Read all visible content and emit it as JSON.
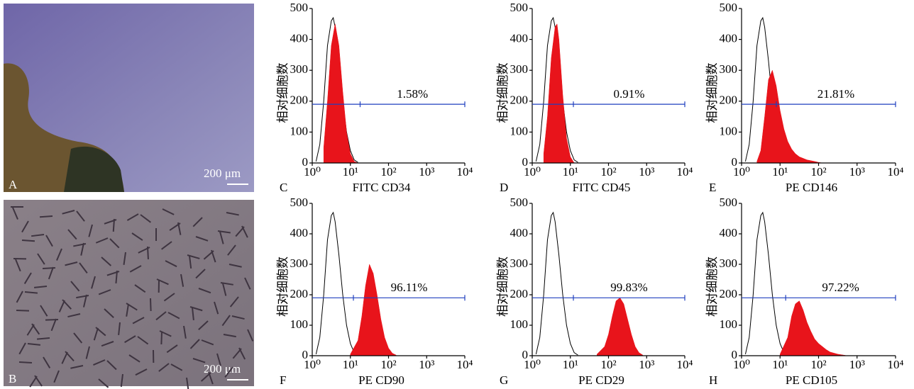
{
  "images": [
    {
      "label": "A",
      "scale": "200 μm"
    },
    {
      "label": "B",
      "scale": "200 μm"
    }
  ],
  "chart_data": [
    {
      "type": "area",
      "panel": "C",
      "xlabel": "FITC CD34",
      "ylabel": "相对细胞数",
      "xscale": "log",
      "xlim": [
        1,
        10000
      ],
      "xticks": [
        {
          "value": 1,
          "label": "10⁰"
        },
        {
          "value": 10,
          "label": "10¹"
        },
        {
          "value": 100,
          "label": "10²"
        },
        {
          "value": 1000,
          "label": "10³"
        },
        {
          "value": 10000,
          "label": "10⁴"
        }
      ],
      "ylim": [
        0,
        500
      ],
      "yticks": [
        0,
        100,
        200,
        300,
        400,
        500
      ],
      "gate": {
        "x": 18,
        "y": 190,
        "label": "1.58%",
        "color": "#1f3fbf"
      },
      "series": [
        {
          "color": "#000000",
          "filled": false,
          "x": [
            1.26,
            1.58,
            2,
            2.51,
            3.16,
            3.55,
            3.98,
            5.01,
            6.31,
            7.94,
            10,
            12.6,
            15.8
          ],
          "values": [
            5,
            60,
            200,
            380,
            460,
            470,
            440,
            330,
            200,
            100,
            40,
            10,
            2
          ]
        },
        {
          "color": "#e8141b",
          "filled": true,
          "x": [
            2,
            2.51,
            3.16,
            3.98,
            5.01,
            6.31,
            7.94,
            10,
            12.6,
            15.8
          ],
          "values": [
            50,
            200,
            380,
            450,
            380,
            230,
            100,
            30,
            5,
            0
          ]
        }
      ]
    },
    {
      "type": "area",
      "panel": "D",
      "xlabel": "FITC CD45",
      "ylabel": "相对细胞数",
      "xscale": "log",
      "xlim": [
        1,
        10000
      ],
      "xticks": [
        {
          "value": 1,
          "label": "10⁰"
        },
        {
          "value": 10,
          "label": "10¹"
        },
        {
          "value": 100,
          "label": "10²"
        },
        {
          "value": 1000,
          "label": "10³"
        },
        {
          "value": 10000,
          "label": "10⁴"
        }
      ],
      "ylim": [
        0,
        500
      ],
      "yticks": [
        0,
        100,
        200,
        300,
        400,
        500
      ],
      "gate": {
        "x": 12,
        "y": 190,
        "label": "0.91%",
        "color": "#1f3fbf"
      },
      "series": [
        {
          "color": "#000000",
          "filled": false,
          "x": [
            1.26,
            1.58,
            2,
            2.51,
            3.16,
            3.55,
            3.98,
            5.01,
            6.31,
            7.94,
            10,
            12.6,
            15.8
          ],
          "values": [
            5,
            60,
            200,
            380,
            460,
            470,
            440,
            330,
            200,
            100,
            40,
            10,
            2
          ]
        },
        {
          "color": "#e8141b",
          "filled": true,
          "x": [
            2,
            2.51,
            3.16,
            3.98,
            4.47,
            5.01,
            6.31,
            7.94,
            10,
            12.6
          ],
          "values": [
            30,
            150,
            340,
            440,
            450,
            400,
            220,
            80,
            20,
            0
          ]
        }
      ]
    },
    {
      "type": "area",
      "panel": "E",
      "xlabel": "PE CD146",
      "ylabel": "相对细胞数",
      "xscale": "log",
      "xlim": [
        1,
        10000
      ],
      "xticks": [
        {
          "value": 1,
          "label": "10⁰"
        },
        {
          "value": 10,
          "label": "10¹"
        },
        {
          "value": 100,
          "label": "10²"
        },
        {
          "value": 1000,
          "label": "10³"
        },
        {
          "value": 10000,
          "label": "10⁴"
        }
      ],
      "ylim": [
        0,
        500
      ],
      "yticks": [
        0,
        100,
        200,
        300,
        400,
        500
      ],
      "gate": {
        "x": 8,
        "y": 190,
        "label": "21.81%",
        "color": "#1f3fbf"
      },
      "series": [
        {
          "color": "#000000",
          "filled": false,
          "x": [
            1.26,
            1.58,
            2,
            2.51,
            3.16,
            3.55,
            3.98,
            5.01,
            6.31,
            7.94,
            10,
            12.6,
            15.8
          ],
          "values": [
            5,
            60,
            200,
            380,
            460,
            470,
            440,
            330,
            200,
            100,
            40,
            10,
            2
          ]
        },
        {
          "color": "#e8141b",
          "filled": true,
          "x": [
            2.51,
            3.16,
            3.98,
            5.01,
            6.31,
            7.94,
            10,
            12.6,
            15.8,
            20,
            25,
            31.6,
            50,
            79,
            100,
            126
          ],
          "values": [
            5,
            40,
            150,
            270,
            300,
            250,
            170,
            110,
            70,
            45,
            30,
            20,
            10,
            5,
            2,
            0
          ]
        }
      ]
    },
    {
      "type": "area",
      "panel": "F",
      "xlabel": "PE CD90",
      "ylabel": "相对细胞数",
      "xscale": "log",
      "xlim": [
        1,
        10000
      ],
      "xticks": [
        {
          "value": 1,
          "label": "10⁰"
        },
        {
          "value": 10,
          "label": "10¹"
        },
        {
          "value": 100,
          "label": "10²"
        },
        {
          "value": 1000,
          "label": "10³"
        },
        {
          "value": 10000,
          "label": "10⁴"
        }
      ],
      "ylim": [
        0,
        500
      ],
      "yticks": [
        0,
        100,
        200,
        300,
        400,
        500
      ],
      "gate": {
        "x": 12,
        "y": 190,
        "label": "96.11%",
        "color": "#1f3fbf"
      },
      "series": [
        {
          "color": "#000000",
          "filled": false,
          "x": [
            1.26,
            1.58,
            2,
            2.51,
            3.16,
            3.55,
            3.98,
            5.01,
            6.31,
            7.94,
            10,
            12.6,
            15.8
          ],
          "values": [
            5,
            60,
            200,
            380,
            460,
            470,
            440,
            330,
            200,
            100,
            40,
            10,
            2
          ]
        },
        {
          "color": "#e8141b",
          "filled": true,
          "x": [
            10,
            15.8,
            20,
            25,
            31.6,
            39.8,
            50,
            63,
            79,
            100,
            126,
            158
          ],
          "values": [
            5,
            50,
            130,
            230,
            300,
            270,
            200,
            120,
            60,
            25,
            8,
            2
          ]
        }
      ]
    },
    {
      "type": "area",
      "panel": "G",
      "xlabel": "PE CD29",
      "ylabel": "相对细胞数",
      "xscale": "log",
      "xlim": [
        1,
        10000
      ],
      "xticks": [
        {
          "value": 1,
          "label": "10⁰"
        },
        {
          "value": 10,
          "label": "10¹"
        },
        {
          "value": 100,
          "label": "10²"
        },
        {
          "value": 1000,
          "label": "10³"
        },
        {
          "value": 10000,
          "label": "10⁴"
        }
      ],
      "ylim": [
        0,
        500
      ],
      "yticks": [
        0,
        100,
        200,
        300,
        400,
        500
      ],
      "gate": {
        "x": 12,
        "y": 190,
        "label": "99.83%",
        "color": "#1f3fbf"
      },
      "series": [
        {
          "color": "#000000",
          "filled": false,
          "x": [
            1.26,
            1.58,
            2,
            2.51,
            3.16,
            3.55,
            3.98,
            5.01,
            6.31,
            7.94,
            10,
            12.6,
            15.8
          ],
          "values": [
            5,
            60,
            200,
            380,
            460,
            470,
            440,
            330,
            200,
            100,
            40,
            10,
            2
          ]
        },
        {
          "color": "#e8141b",
          "filled": true,
          "x": [
            50,
            79,
            100,
            126,
            158,
            200,
            251,
            316,
            398,
            501,
            631,
            794
          ],
          "values": [
            5,
            30,
            70,
            130,
            180,
            190,
            170,
            120,
            70,
            30,
            10,
            2
          ]
        }
      ]
    },
    {
      "type": "area",
      "panel": "H",
      "xlabel": "PE CD105",
      "ylabel": "相对细胞数",
      "xscale": "log",
      "xlim": [
        1,
        10000
      ],
      "xticks": [
        {
          "value": 1,
          "label": "10⁰"
        },
        {
          "value": 10,
          "label": "10¹"
        },
        {
          "value": 100,
          "label": "10²"
        },
        {
          "value": 1000,
          "label": "10³"
        },
        {
          "value": 10000,
          "label": "10⁴"
        }
      ],
      "ylim": [
        0,
        500
      ],
      "yticks": [
        0,
        100,
        200,
        300,
        400,
        500
      ],
      "gate": {
        "x": 14,
        "y": 190,
        "label": "97.22%",
        "color": "#1f3fbf"
      },
      "series": [
        {
          "color": "#000000",
          "filled": false,
          "x": [
            1.26,
            1.58,
            2,
            2.51,
            3.16,
            3.55,
            3.98,
            5.01,
            6.31,
            7.94,
            10,
            12.6,
            15.8
          ],
          "values": [
            5,
            60,
            200,
            380,
            460,
            470,
            440,
            330,
            200,
            100,
            40,
            10,
            2
          ]
        },
        {
          "color": "#e8141b",
          "filled": true,
          "x": [
            10,
            15.8,
            20,
            25,
            31.6,
            39.8,
            50,
            63,
            79,
            100,
            126,
            158,
            200,
            316,
            501
          ],
          "values": [
            5,
            60,
            130,
            170,
            180,
            150,
            110,
            80,
            55,
            40,
            30,
            20,
            12,
            5,
            1
          ]
        }
      ]
    }
  ]
}
